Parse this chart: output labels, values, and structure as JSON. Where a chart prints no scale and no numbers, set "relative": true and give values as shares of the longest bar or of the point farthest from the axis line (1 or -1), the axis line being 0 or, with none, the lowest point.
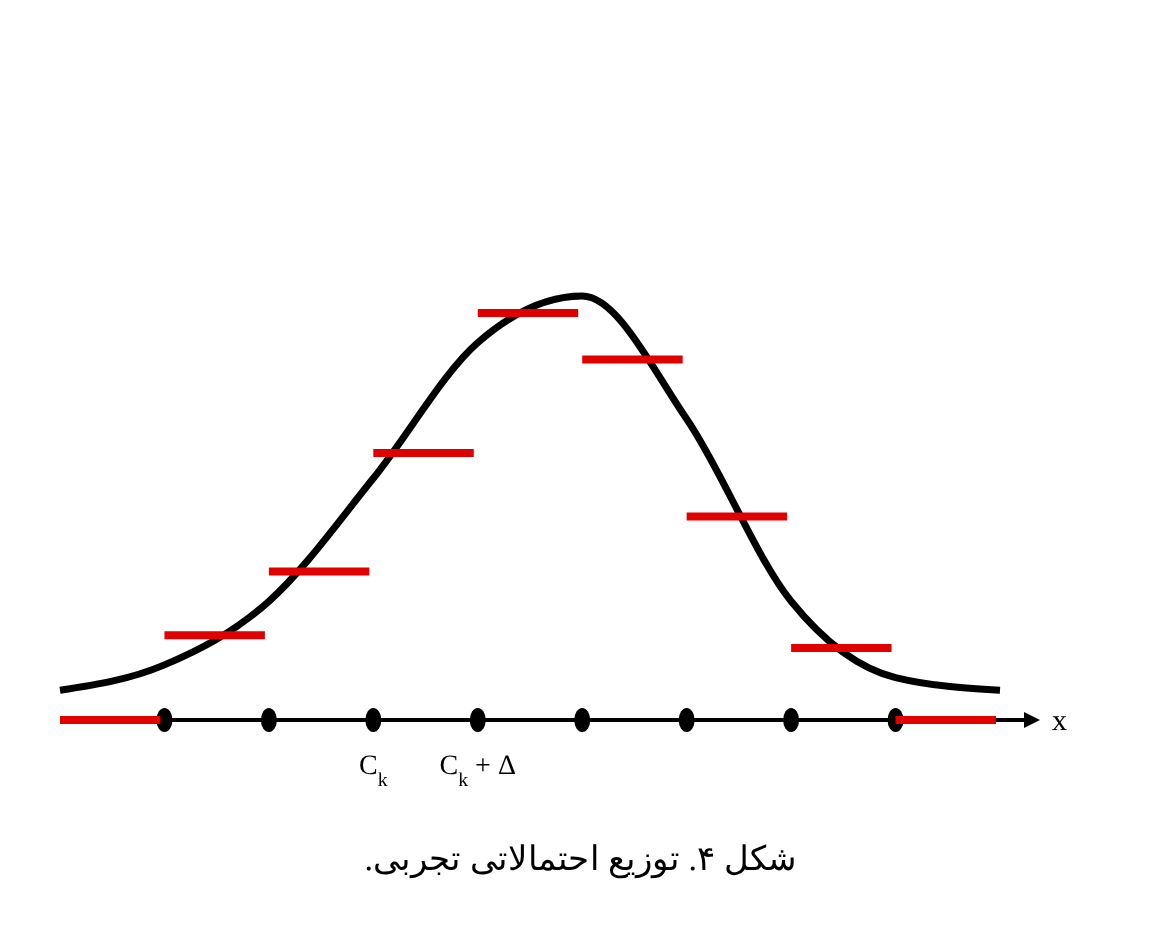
{
  "chart_data": {
    "type": "line",
    "relative": true,
    "xlabel": "x",
    "categories": [
      null,
      null,
      null,
      "C$_{k}$",
      "C$_{k}$ + Δ",
      null,
      null,
      null,
      null,
      null
    ],
    "series": [
      {
        "color": "#000000",
        "values": [
          0.07,
          0.13,
          0.28,
          0.57,
          0.89,
          1.0,
          0.71,
          0.28,
          0.1,
          0.07
        ]
      },
      {
        "type": "step",
        "color": "#e00000",
        "values": [
          0,
          0.2,
          0.35,
          0.63,
          0.96,
          0.85,
          0.48,
          0.17,
          0,
          0
        ]
      }
    ],
    "annotations": [
      "شکل ۴. توزیع احتمالاتی تجربی."
    ]
  }
}
